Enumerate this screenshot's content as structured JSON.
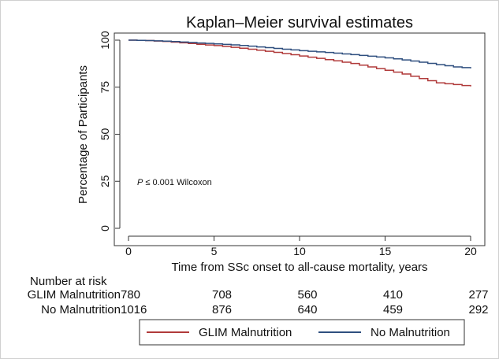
{
  "chart_data": {
    "type": "line",
    "title": "Kaplan–Meier survival estimates",
    "xlabel": "Time from SSc onset to all-cause mortality, years",
    "ylabel": "Percentage of Participants",
    "xlim": [
      0,
      20
    ],
    "ylim": [
      0,
      100
    ],
    "xticks": [
      0,
      5,
      10,
      15,
      20
    ],
    "yticks": [
      0,
      25,
      50,
      75,
      100
    ],
    "xtick_labels": [
      "0",
      "5",
      "10",
      "15",
      "20"
    ],
    "ytick_labels": [
      "0",
      "25",
      "50",
      "75",
      "100"
    ],
    "annotation": {
      "p_symbol": "P",
      "p_rest": " ≤ 0.001 Wilcoxon"
    },
    "series": [
      {
        "name": "GLIM Malnutrition",
        "color": "#b03a3a",
        "x": [
          0,
          1,
          2,
          3,
          4,
          5,
          6,
          7,
          8,
          9,
          10,
          11,
          12,
          13,
          14,
          15,
          16,
          17,
          18,
          19,
          20
        ],
        "y": [
          100,
          99.8,
          99.3,
          98.6,
          97.8,
          97.1,
          96.2,
          95.2,
          94.1,
          92.9,
          91.6,
          90.3,
          89.0,
          87.6,
          85.8,
          84.0,
          82.0,
          79.6,
          77.3,
          76.4,
          75.4
        ]
      },
      {
        "name": "No Malnutrition",
        "color": "#2f4f7f",
        "x": [
          0,
          1,
          2,
          3,
          4,
          5,
          6,
          7,
          8,
          9,
          10,
          11,
          12,
          13,
          14,
          15,
          16,
          17,
          18,
          19,
          20
        ],
        "y": [
          100,
          99.8,
          99.5,
          99.0,
          98.5,
          98.0,
          97.5,
          96.8,
          96.0,
          95.2,
          94.4,
          93.8,
          93.1,
          92.3,
          91.5,
          90.6,
          89.5,
          88.3,
          87.0,
          85.8,
          85.0
        ]
      }
    ],
    "risk_table": {
      "heading": "Number at risk",
      "rows": [
        {
          "label": "GLIM Malnutrition",
          "values": [
            "780",
            "708",
            "560",
            "410",
            "277"
          ]
        },
        {
          "label": "No Malnutrition",
          "values": [
            "1016",
            "876",
            "640",
            "459",
            "292"
          ]
        }
      ]
    },
    "legend": {
      "placement": "bottom-center",
      "entries": [
        "GLIM Malnutrition",
        "No Malnutrition"
      ]
    },
    "grid": false
  }
}
